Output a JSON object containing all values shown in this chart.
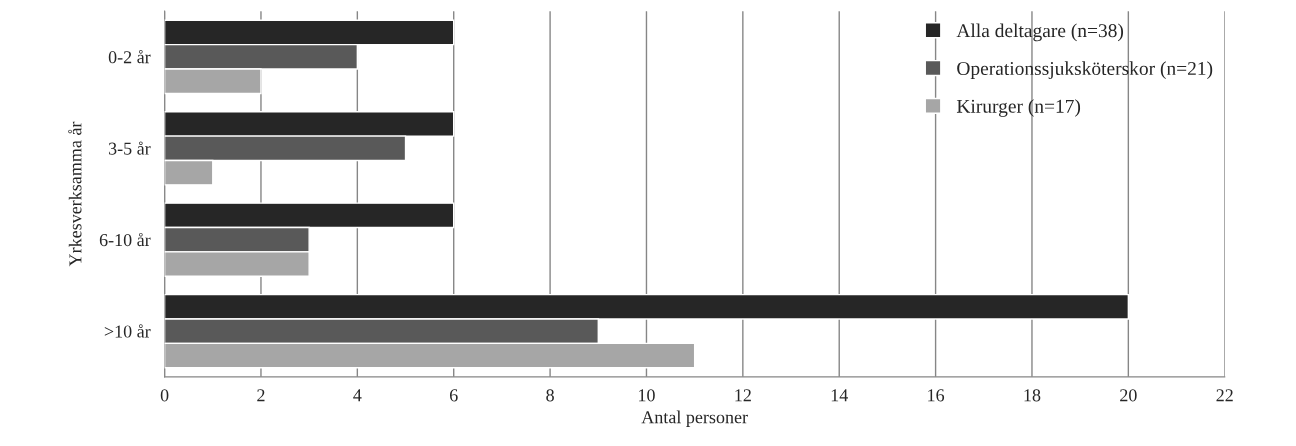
{
  "chart_data": {
    "type": "bar",
    "orientation": "horizontal",
    "xlabel": "Antal personer",
    "ylabel": "Yrkesverksamma år",
    "categories": [
      "0-2 år",
      "3-5 år",
      "6-10 år",
      ">10 år"
    ],
    "series": [
      {
        "name": "Alla deltagare (n=38)",
        "color": "#262626",
        "values": [
          6,
          6,
          6,
          20
        ]
      },
      {
        "name": "Operationssjuksköterskor (n=21)",
        "color": "#595959",
        "values": [
          4,
          5,
          3,
          9
        ]
      },
      {
        "name": "Kirurger (n=17)",
        "color": "#a6a6a6",
        "values": [
          2,
          1,
          3,
          11
        ]
      }
    ],
    "xlim": [
      0,
      22
    ],
    "xticks": [
      0,
      2,
      4,
      6,
      8,
      10,
      12,
      14,
      16,
      18,
      20,
      22
    ],
    "grid": "x",
    "legend": "top right"
  }
}
